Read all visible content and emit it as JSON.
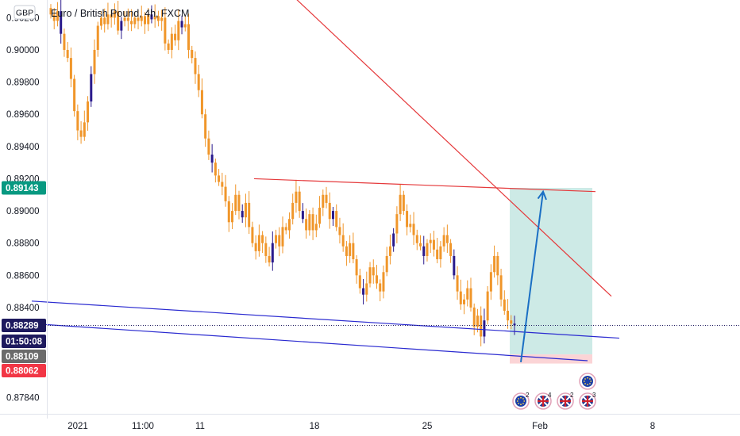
{
  "header": {
    "currency": "GBP",
    "symbol_title": "Euro / British Pound, 4h, FXCM"
  },
  "price_tags": {
    "target": {
      "value": "0.89143",
      "price": 0.89143,
      "color": "#089981"
    },
    "last": {
      "value": "0.88289",
      "price": 0.88289,
      "color": "#1e1a5e"
    },
    "countdown": {
      "value": "01:50:08",
      "color": "#1e1a5e"
    },
    "entry": {
      "value": "0.88109",
      "price": 0.88109,
      "color": "#6b6b6b"
    },
    "stop": {
      "value": "0.88062",
      "price": 0.88062,
      "color": "#f23645"
    }
  },
  "colors": {
    "candle": "#f0962a",
    "candle_alt": "#2a1a8c",
    "red_line": "#e5393b",
    "blue_line": "#2a2ad0",
    "target_zone": "#cdeae6",
    "stop_zone": "#fbd4d6",
    "arrow": "#1a6fc4"
  },
  "events": [
    {
      "count": "2",
      "icon": "eu-flag-icon"
    },
    {
      "count": "4",
      "icon": "uk-flag-icon"
    },
    {
      "count": "2",
      "icon": "uk-flag-icon"
    },
    {
      "count": "3",
      "icon": "uk-flag-icon"
    },
    {
      "count": "",
      "icon": "eu-flag-icon"
    }
  ],
  "chart_data": {
    "type": "candlestick",
    "title": "Euro / British Pound, 4h, FXCM",
    "ylim": [
      0.8774,
      0.9031
    ],
    "y_ticks": [
      0.902,
      0.9,
      0.898,
      0.896,
      0.894,
      0.892,
      0.89,
      0.888,
      0.886,
      0.884,
      0.8784
    ],
    "y_tick_labels": [
      "0.90200",
      "0.90000",
      "0.89800",
      "0.89600",
      "0.89400",
      "0.89200",
      "0.89000",
      "0.88800",
      "0.88600",
      "0.88400",
      "0.87840"
    ],
    "x_tick_labels": [
      {
        "label": "2021",
        "day": 0
      },
      {
        "label": "11:00",
        "day": 1.7
      },
      {
        "label": "11",
        "day": 3.6
      },
      {
        "label": "18",
        "day": 10.6
      },
      {
        "label": "25",
        "day": 17.6
      },
      {
        "label": "Feb",
        "day": 24.6
      },
      {
        "label": "8",
        "day": 31.6
      }
    ],
    "grid": false,
    "close_series": [
      0.9022,
      0.9018,
      0.9024,
      0.901,
      0.9,
      0.8995,
      0.8982,
      0.8962,
      0.895,
      0.8946,
      0.8955,
      0.8968,
      0.8985,
      0.9,
      0.9015,
      0.902,
      0.9016,
      0.9022,
      0.902,
      0.9024,
      0.9012,
      0.9018,
      0.902,
      0.9018,
      0.9016,
      0.902,
      0.9018,
      0.9021,
      0.9016,
      0.9022,
      0.9019,
      0.9021,
      0.9018,
      0.902,
      0.9004,
      0.9,
      0.901,
      0.9006,
      0.9018,
      0.9014,
      0.9016,
      0.9,
      0.8995,
      0.8985,
      0.8975,
      0.896,
      0.8945,
      0.8935,
      0.893,
      0.8922,
      0.8918,
      0.8915,
      0.8906,
      0.8893,
      0.89,
      0.891,
      0.89,
      0.8896,
      0.8905,
      0.889,
      0.888,
      0.8875,
      0.8885,
      0.888,
      0.8872,
      0.8868,
      0.888,
      0.8885,
      0.8878,
      0.889,
      0.8888,
      0.8895,
      0.8905,
      0.8912,
      0.89,
      0.8895,
      0.8888,
      0.8898,
      0.8888,
      0.8892,
      0.8902,
      0.891,
      0.8905,
      0.8895,
      0.89,
      0.889,
      0.8885,
      0.8878,
      0.8872,
      0.888,
      0.887,
      0.886,
      0.8852,
      0.8848,
      0.8855,
      0.8865,
      0.886,
      0.8855,
      0.885,
      0.8862,
      0.8872,
      0.8878,
      0.8886,
      0.8898,
      0.891,
      0.89,
      0.889,
      0.8892,
      0.8885,
      0.888,
      0.8878,
      0.8872,
      0.888,
      0.8882,
      0.8876,
      0.887,
      0.8878,
      0.8885,
      0.888,
      0.8872,
      0.886,
      0.885,
      0.8842,
      0.8845,
      0.8852,
      0.884,
      0.8828,
      0.8835,
      0.8822,
      0.8832,
      0.885,
      0.8862,
      0.8872,
      0.886,
      0.8845,
      0.8838,
      0.8832,
      0.883,
      0.8829
    ],
    "lines": [
      {
        "name": "descending resistance",
        "color": "red",
        "from": {
          "day": 13.5,
          "price": 0.9033
        },
        "to": {
          "day": 33.5,
          "price": 0.8847
        }
      },
      {
        "name": "horizontal resistance",
        "color": "red",
        "from": {
          "day": 11.0,
          "price": 0.892
        },
        "to": {
          "day": 32.5,
          "price": 0.8912
        }
      },
      {
        "name": "upper channel",
        "color": "blue",
        "from": {
          "day": -3.0,
          "price": 0.8844
        },
        "to": {
          "day": 34.0,
          "price": 0.8821
        }
      },
      {
        "name": "lower channel",
        "color": "blue",
        "from": {
          "day": -3.0,
          "price": 0.883
        },
        "to": {
          "day": 32.0,
          "price": 0.8807
        }
      }
    ],
    "position": {
      "entry": 0.88109,
      "target": 0.89143,
      "stop": 0.88062
    },
    "projection_arrow": {
      "from": {
        "day": 30.0,
        "price": 0.881
      },
      "to": {
        "day": 32.0,
        "price": 0.8913
      }
    }
  }
}
